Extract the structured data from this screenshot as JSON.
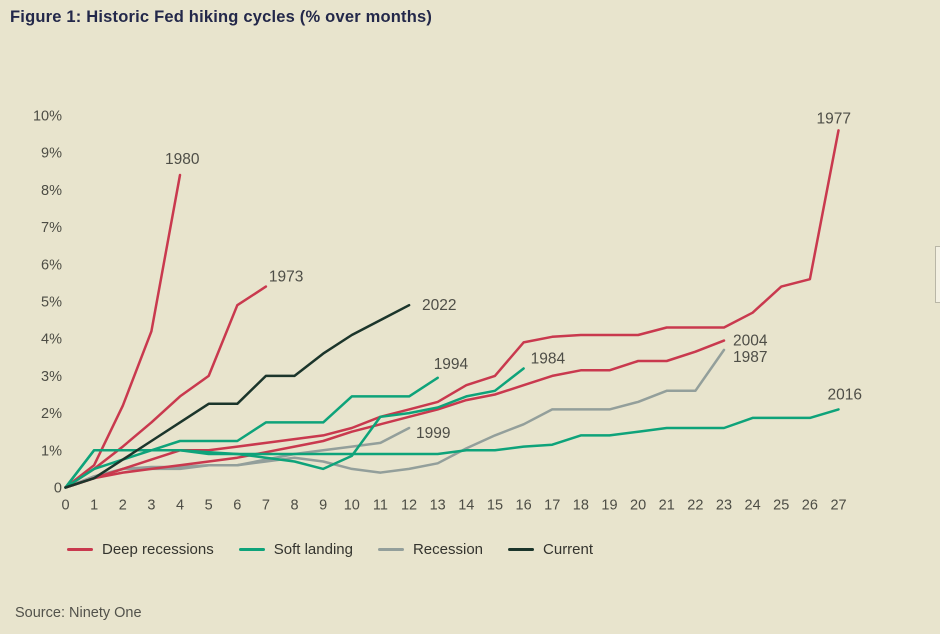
{
  "page": {
    "title": "Figure 1: Historic Fed hiking cycles (% over months)",
    "source": "Source: Ninety One",
    "background_color": "#e8e4cd"
  },
  "legend": {
    "items": [
      {
        "label": "Deep recessions",
        "color": "#c9394e"
      },
      {
        "label": "Soft landing",
        "color": "#0ea37a"
      },
      {
        "label": "Recession",
        "color": "#939f9b"
      },
      {
        "label": "Current",
        "color": "#1b352b"
      }
    ]
  },
  "chart_data": {
    "type": "line",
    "title": "Figure 1: Historic Fed hiking cycles (% over months)",
    "x_unit_note": "% over months",
    "xlim": [
      0,
      27
    ],
    "ylim": [
      0,
      10
    ],
    "grid": false,
    "legend_position": "bottom",
    "x_ticks": [
      0,
      1,
      2,
      3,
      4,
      5,
      6,
      7,
      8,
      9,
      10,
      11,
      12,
      13,
      14,
      15,
      16,
      17,
      18,
      19,
      20,
      21,
      22,
      23,
      24,
      25,
      26,
      27
    ],
    "y_ticks": [
      {
        "value": 10,
        "label": "10%"
      },
      {
        "value": 9,
        "label": "9%"
      },
      {
        "value": 8,
        "label": "8%"
      },
      {
        "value": 7,
        "label": "7%"
      },
      {
        "value": 6,
        "label": "6%"
      },
      {
        "value": 5,
        "label": "5%"
      },
      {
        "value": 4,
        "label": "4%"
      },
      {
        "value": 3,
        "label": "3%"
      },
      {
        "value": 2,
        "label": "2%"
      },
      {
        "value": 1,
        "label": "1%"
      },
      {
        "value": 0,
        "label": "0"
      }
    ],
    "series": [
      {
        "name": "1999",
        "group": "Recession",
        "color": "#939f9b",
        "values": [
          0,
          0.25,
          0.5,
          0.5,
          0.5,
          0.6,
          0.6,
          0.75,
          0.9,
          1.0,
          1.1,
          1.2,
          1.6
        ]
      },
      {
        "name": "1987",
        "group": "Recession",
        "color": "#939f9b",
        "values": [
          0,
          0.3,
          0.5,
          0.55,
          0.55,
          0.6,
          0.6,
          0.7,
          0.8,
          0.7,
          0.5,
          0.4,
          0.5,
          0.65,
          1.05,
          1.4,
          1.7,
          2.1,
          2.1,
          2.1,
          2.3,
          2.6,
          2.6,
          3.7
        ]
      },
      {
        "name": "2004",
        "group": "Deep recessions",
        "color": "#c9394e",
        "values": [
          0,
          0.25,
          0.4,
          0.5,
          0.6,
          0.7,
          0.8,
          0.95,
          1.1,
          1.25,
          1.5,
          1.7,
          1.9,
          2.1,
          2.35,
          2.5,
          2.75,
          3.0,
          3.15,
          3.15,
          3.4,
          3.4,
          3.65,
          3.95
        ]
      },
      {
        "name": "1977",
        "group": "Deep recessions",
        "color": "#c9394e",
        "values": [
          0,
          0.25,
          0.5,
          0.75,
          1.0,
          1.0,
          1.1,
          1.2,
          1.3,
          1.4,
          1.6,
          1.9,
          2.1,
          2.3,
          2.75,
          3.0,
          3.9,
          4.05,
          4.1,
          4.1,
          4.1,
          4.3,
          4.3,
          4.3,
          4.7,
          5.4,
          5.6,
          9.6
        ]
      },
      {
        "name": "1973",
        "group": "Deep recessions",
        "color": "#c9394e",
        "values": [
          0,
          0.5,
          1.1,
          1.75,
          2.45,
          3.0,
          4.9,
          5.4
        ]
      },
      {
        "name": "1980",
        "group": "Deep recessions",
        "color": "#c9394e",
        "values": [
          0,
          0.6,
          2.2,
          4.2,
          8.4
        ]
      },
      {
        "name": "2016",
        "group": "Soft landing",
        "color": "#0ea37a",
        "values": [
          0,
          1.0,
          1.0,
          1.0,
          1.0,
          0.9,
          0.9,
          0.9,
          0.9,
          0.9,
          0.9,
          0.9,
          0.9,
          0.9,
          1.0,
          1.0,
          1.1,
          1.15,
          1.4,
          1.4,
          1.5,
          1.6,
          1.6,
          1.6,
          1.87,
          1.87,
          1.87,
          2.1
        ]
      },
      {
        "name": "1994",
        "group": "Soft landing",
        "color": "#0ea37a",
        "values": [
          0,
          0.5,
          0.75,
          1.0,
          1.25,
          1.25,
          1.25,
          1.75,
          1.75,
          1.75,
          2.45,
          2.45,
          2.45,
          2.95
        ]
      },
      {
        "name": "1984",
        "group": "Soft landing",
        "color": "#0ea37a",
        "values": [
          0,
          1.0,
          1.0,
          1.0,
          1.0,
          0.95,
          0.9,
          0.8,
          0.7,
          0.5,
          0.85,
          1.9,
          2.0,
          2.15,
          2.45,
          2.6,
          3.2
        ]
      },
      {
        "name": "2022",
        "group": "Current",
        "color": "#1b352b",
        "values": [
          0,
          0.25,
          0.75,
          1.25,
          1.75,
          2.25,
          2.25,
          3.0,
          3.0,
          3.6,
          4.1,
          4.5,
          4.9
        ]
      }
    ]
  }
}
